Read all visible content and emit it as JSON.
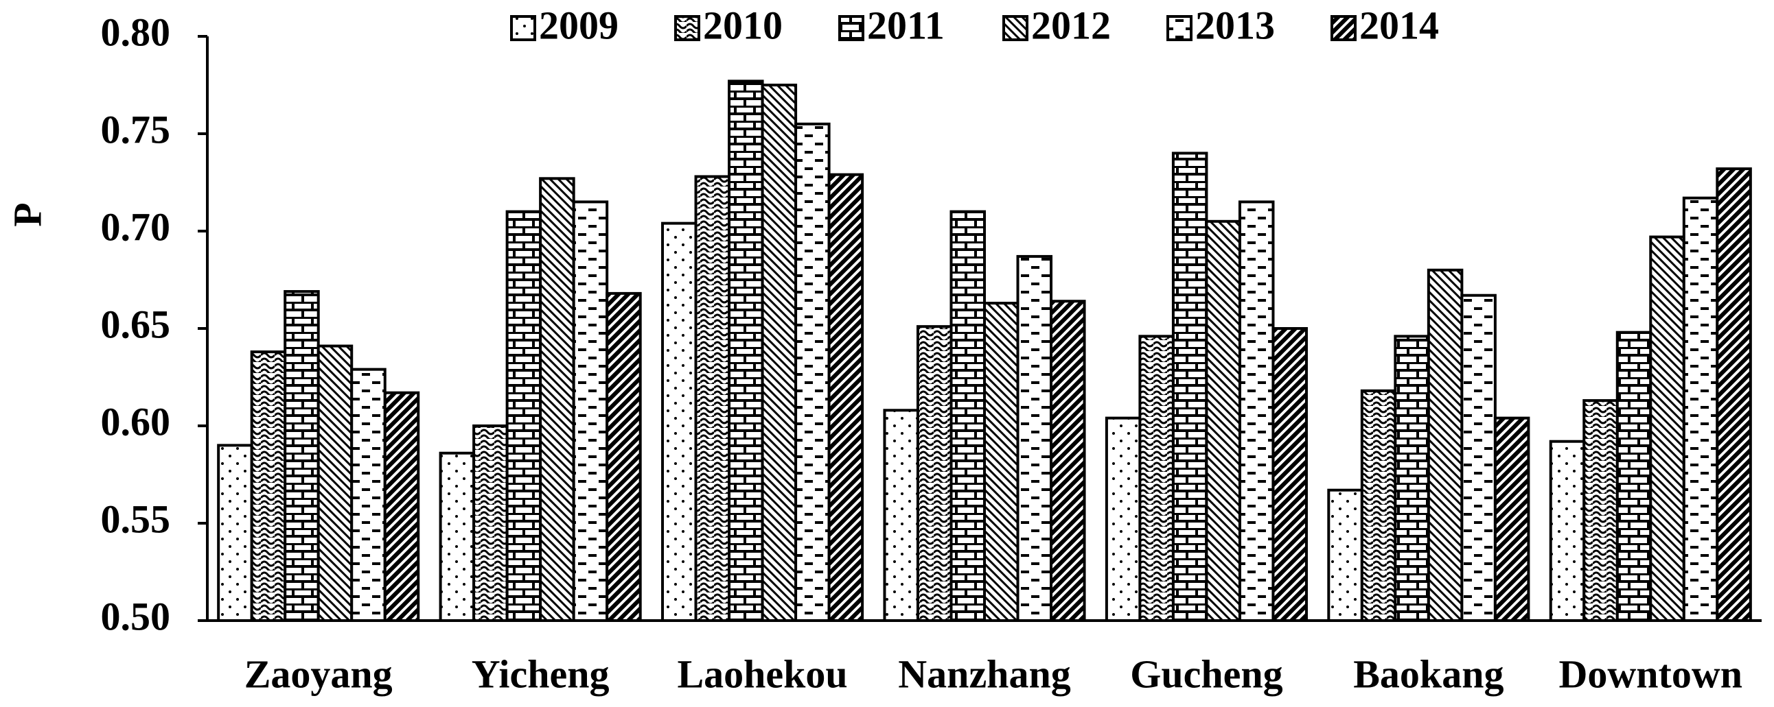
{
  "chart_data": {
    "type": "bar",
    "y_label": "P",
    "categories": [
      "Zaoyang",
      "Yicheng",
      "Laohekou",
      "Nanzhang",
      "Gucheng",
      "Baokang",
      "Downtown"
    ],
    "series": [
      {
        "name": "2009",
        "color": "#000000",
        "pattern": "dots",
        "values": [
          0.59,
          0.586,
          0.704,
          0.608,
          0.604,
          0.567,
          0.592
        ]
      },
      {
        "name": "2010",
        "color": "#000000",
        "pattern": "waves",
        "values": [
          0.638,
          0.6,
          0.728,
          0.651,
          0.646,
          0.618,
          0.613
        ]
      },
      {
        "name": "2011",
        "color": "#000000",
        "pattern": "bricks",
        "values": [
          0.669,
          0.71,
          0.777,
          0.71,
          0.74,
          0.646,
          0.648
        ]
      },
      {
        "name": "2012",
        "color": "#000000",
        "pattern": "diagonal",
        "values": [
          0.641,
          0.727,
          0.775,
          0.663,
          0.705,
          0.68,
          0.697
        ]
      },
      {
        "name": "2013",
        "color": "#000000",
        "pattern": "dashes",
        "values": [
          0.629,
          0.715,
          0.755,
          0.687,
          0.715,
          0.667,
          0.717
        ]
      },
      {
        "name": "2014",
        "color": "#000000",
        "pattern": "thick-diagonal",
        "values": [
          0.617,
          0.668,
          0.729,
          0.664,
          0.65,
          0.604,
          0.732
        ]
      }
    ],
    "ylim": [
      0.5,
      0.8
    ],
    "yticks": [
      {
        "value": 0.5,
        "label": "0.50"
      },
      {
        "value": 0.55,
        "label": "0.55"
      },
      {
        "value": 0.6,
        "label": "0.60"
      },
      {
        "value": 0.65,
        "label": "0.65"
      },
      {
        "value": 0.7,
        "label": "0.70"
      },
      {
        "value": 0.75,
        "label": "0.75"
      },
      {
        "value": 0.8,
        "label": "0.80"
      }
    ],
    "legend": "top",
    "grid": false
  }
}
